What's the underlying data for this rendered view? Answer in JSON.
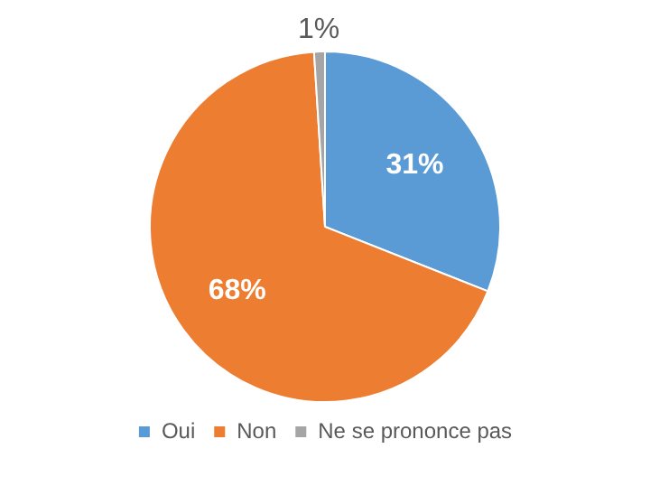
{
  "chart_data": {
    "type": "pie",
    "categories": [
      "Oui",
      "Non",
      "Ne se prononce pas"
    ],
    "values": [
      31,
      68,
      1
    ],
    "colors": [
      "#5b9bd5",
      "#ed7d31",
      "#a5a5a5"
    ],
    "value_labels": [
      "31%",
      "68%",
      "1%"
    ],
    "legend": "bottom"
  }
}
